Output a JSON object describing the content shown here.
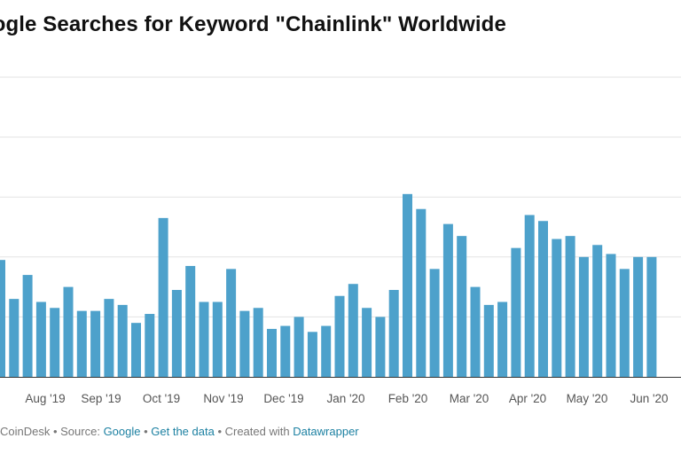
{
  "title": "oogle Searches for Keyword \"Chainlink\" Worldwide",
  "footer": {
    "prefix": "CoinDesk",
    "sep1": " • Source: ",
    "source": "Google",
    "sep2": " • ",
    "get_data": "Get the data",
    "sep3": " • Created with ",
    "tool": "Datawrapper"
  },
  "colors": {
    "bar": "#4da1cb",
    "grid": "#e3e3e3",
    "axis": "#333333"
  },
  "chart_data": {
    "type": "bar",
    "title": "oogle Searches for Keyword \"Chainlink\" Worldwide",
    "xlabel": "",
    "ylabel": "",
    "ylim": [
      0,
      100
    ],
    "grid": true,
    "x_tick_labels": [
      "Aug '19",
      "Sep '19",
      "Oct '19",
      "Nov '19",
      "Dec '19",
      "Jan '20",
      "Feb '20",
      "Mar '20",
      "Apr '20",
      "May '20",
      "Jun '20"
    ],
    "values": [
      39,
      26,
      34,
      25,
      23,
      30,
      22,
      22,
      26,
      24,
      18,
      21,
      53,
      29,
      37,
      25,
      25,
      36,
      22,
      23,
      16,
      17,
      20,
      15,
      17,
      27,
      31,
      23,
      20,
      29,
      61,
      56,
      36,
      51,
      47,
      30,
      24,
      25,
      43,
      54,
      52,
      46,
      47,
      40,
      44,
      41,
      36,
      40,
      40
    ]
  }
}
